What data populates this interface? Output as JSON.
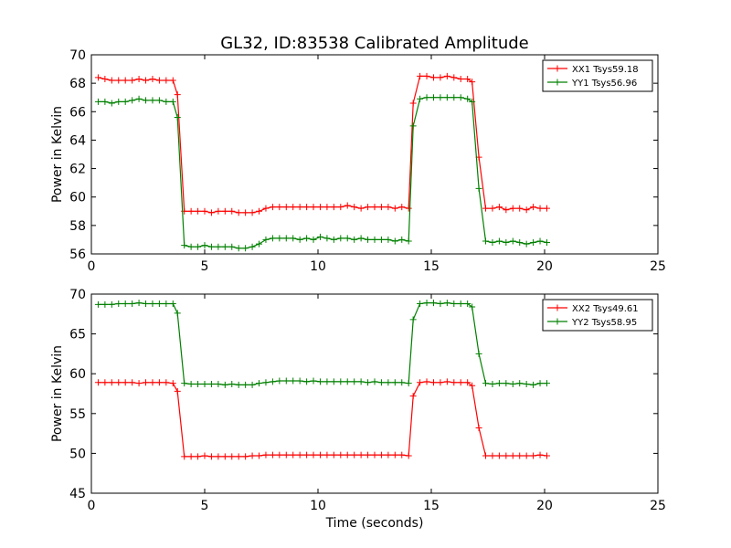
{
  "figure": {
    "title": "GL32, ID:83538 Calibrated Amplitude"
  },
  "chart_data": [
    {
      "type": "line",
      "ylabel": "Power in Kelvin",
      "xlabel": "",
      "xlim": [
        0,
        25
      ],
      "ylim": [
        56,
        70
      ],
      "xticks": [
        0,
        5,
        10,
        15,
        20,
        25
      ],
      "yticks": [
        56,
        58,
        60,
        62,
        64,
        66,
        68,
        70
      ],
      "grid": false,
      "legend_position": "top-right",
      "series": [
        {
          "name": "XX1 Tsys59.18",
          "color": "#ff0000",
          "marker": "plus",
          "x": [
            0.3,
            0.6,
            0.9,
            1.2,
            1.5,
            1.8,
            2.1,
            2.4,
            2.7,
            3.0,
            3.3,
            3.6,
            3.8,
            4.1,
            4.4,
            4.7,
            5.0,
            5.3,
            5.6,
            5.9,
            6.2,
            6.5,
            6.8,
            7.1,
            7.4,
            7.7,
            8.0,
            8.3,
            8.6,
            8.9,
            9.2,
            9.5,
            9.8,
            10.1,
            10.4,
            10.7,
            11.0,
            11.3,
            11.6,
            11.9,
            12.2,
            12.5,
            12.8,
            13.1,
            13.4,
            13.7,
            14.0,
            14.2,
            14.5,
            14.8,
            15.1,
            15.4,
            15.7,
            16.0,
            16.3,
            16.6,
            16.8,
            17.1,
            17.4,
            17.7,
            18.0,
            18.3,
            18.6,
            18.9,
            19.2,
            19.5,
            19.8,
            20.1
          ],
          "y": [
            68.4,
            68.3,
            68.2,
            68.2,
            68.2,
            68.2,
            68.3,
            68.2,
            68.3,
            68.2,
            68.2,
            68.2,
            67.2,
            59.0,
            59.0,
            59.0,
            59.0,
            58.9,
            59.0,
            59.0,
            59.0,
            58.9,
            58.9,
            58.9,
            59.0,
            59.2,
            59.3,
            59.3,
            59.3,
            59.3,
            59.3,
            59.3,
            59.3,
            59.3,
            59.3,
            59.3,
            59.3,
            59.4,
            59.3,
            59.2,
            59.3,
            59.3,
            59.3,
            59.3,
            59.2,
            59.3,
            59.2,
            66.6,
            68.5,
            68.5,
            68.4,
            68.4,
            68.5,
            68.4,
            68.3,
            68.3,
            68.1,
            62.8,
            59.2,
            59.2,
            59.3,
            59.1,
            59.2,
            59.2,
            59.1,
            59.3,
            59.2,
            59.2
          ]
        },
        {
          "name": "YY1 Tsys56.96",
          "color": "#008000",
          "marker": "plus",
          "x": [
            0.3,
            0.6,
            0.9,
            1.2,
            1.5,
            1.8,
            2.1,
            2.4,
            2.7,
            3.0,
            3.3,
            3.6,
            3.8,
            4.1,
            4.4,
            4.7,
            5.0,
            5.3,
            5.6,
            5.9,
            6.2,
            6.5,
            6.8,
            7.1,
            7.4,
            7.7,
            8.0,
            8.3,
            8.6,
            8.9,
            9.2,
            9.5,
            9.8,
            10.1,
            10.4,
            10.7,
            11.0,
            11.3,
            11.6,
            11.9,
            12.2,
            12.5,
            12.8,
            13.1,
            13.4,
            13.7,
            14.0,
            14.2,
            14.5,
            14.8,
            15.1,
            15.4,
            15.7,
            16.0,
            16.3,
            16.6,
            16.8,
            17.1,
            17.4,
            17.7,
            18.0,
            18.3,
            18.6,
            18.9,
            19.2,
            19.5,
            19.8,
            20.1
          ],
          "y": [
            66.7,
            66.7,
            66.6,
            66.7,
            66.7,
            66.8,
            66.9,
            66.8,
            66.8,
            66.8,
            66.7,
            66.7,
            65.6,
            56.6,
            56.5,
            56.5,
            56.6,
            56.5,
            56.5,
            56.5,
            56.5,
            56.4,
            56.4,
            56.5,
            56.7,
            57.0,
            57.1,
            57.1,
            57.1,
            57.1,
            57.0,
            57.1,
            57.0,
            57.2,
            57.1,
            57.0,
            57.1,
            57.1,
            57.0,
            57.1,
            57.0,
            57.0,
            57.0,
            57.0,
            56.9,
            57.0,
            56.9,
            65.0,
            66.9,
            67.0,
            67.0,
            67.0,
            67.0,
            67.0,
            67.0,
            66.9,
            66.7,
            60.6,
            56.9,
            56.8,
            56.9,
            56.8,
            56.9,
            56.8,
            56.7,
            56.8,
            56.9,
            56.8
          ]
        }
      ]
    },
    {
      "type": "line",
      "ylabel": "Power in Kelvin",
      "xlabel": "Time (seconds)",
      "xlim": [
        0,
        25
      ],
      "ylim": [
        45,
        70
      ],
      "xticks": [
        0,
        5,
        10,
        15,
        20,
        25
      ],
      "yticks": [
        45,
        50,
        55,
        60,
        65,
        70
      ],
      "grid": false,
      "legend_position": "top-right",
      "series": [
        {
          "name": "XX2 Tsys49.61",
          "color": "#ff0000",
          "marker": "plus",
          "x": [
            0.3,
            0.6,
            0.9,
            1.2,
            1.5,
            1.8,
            2.1,
            2.4,
            2.7,
            3.0,
            3.3,
            3.6,
            3.8,
            4.1,
            4.4,
            4.7,
            5.0,
            5.3,
            5.6,
            5.9,
            6.2,
            6.5,
            6.8,
            7.1,
            7.4,
            7.7,
            8.0,
            8.3,
            8.6,
            8.9,
            9.2,
            9.5,
            9.8,
            10.1,
            10.4,
            10.7,
            11.0,
            11.3,
            11.6,
            11.9,
            12.2,
            12.5,
            12.8,
            13.1,
            13.4,
            13.7,
            14.0,
            14.2,
            14.5,
            14.8,
            15.1,
            15.4,
            15.7,
            16.0,
            16.3,
            16.6,
            16.8,
            17.1,
            17.4,
            17.7,
            18.0,
            18.3,
            18.6,
            18.9,
            19.2,
            19.5,
            19.8,
            20.1
          ],
          "y": [
            58.9,
            58.9,
            58.9,
            58.9,
            58.9,
            58.9,
            58.8,
            58.9,
            58.9,
            58.9,
            58.9,
            58.8,
            57.8,
            49.6,
            49.6,
            49.6,
            49.7,
            49.6,
            49.6,
            49.6,
            49.6,
            49.6,
            49.6,
            49.7,
            49.7,
            49.8,
            49.8,
            49.8,
            49.8,
            49.8,
            49.8,
            49.8,
            49.8,
            49.8,
            49.8,
            49.8,
            49.8,
            49.8,
            49.8,
            49.8,
            49.8,
            49.8,
            49.8,
            49.8,
            49.8,
            49.8,
            49.7,
            57.2,
            58.9,
            59.0,
            58.9,
            58.9,
            59.0,
            58.9,
            58.9,
            58.9,
            58.5,
            53.2,
            49.7,
            49.7,
            49.7,
            49.7,
            49.7,
            49.7,
            49.7,
            49.7,
            49.8,
            49.7
          ]
        },
        {
          "name": "YY2 Tsys58.95",
          "color": "#008000",
          "marker": "plus",
          "x": [
            0.3,
            0.6,
            0.9,
            1.2,
            1.5,
            1.8,
            2.1,
            2.4,
            2.7,
            3.0,
            3.3,
            3.6,
            3.8,
            4.1,
            4.4,
            4.7,
            5.0,
            5.3,
            5.6,
            5.9,
            6.2,
            6.5,
            6.8,
            7.1,
            7.4,
            7.7,
            8.0,
            8.3,
            8.6,
            8.9,
            9.2,
            9.5,
            9.8,
            10.1,
            10.4,
            10.7,
            11.0,
            11.3,
            11.6,
            11.9,
            12.2,
            12.5,
            12.8,
            13.1,
            13.4,
            13.7,
            14.0,
            14.2,
            14.5,
            14.8,
            15.1,
            15.4,
            15.7,
            16.0,
            16.3,
            16.6,
            16.8,
            17.1,
            17.4,
            17.7,
            18.0,
            18.3,
            18.6,
            18.9,
            19.2,
            19.5,
            19.8,
            20.1
          ],
          "y": [
            68.7,
            68.7,
            68.7,
            68.8,
            68.8,
            68.8,
            68.9,
            68.8,
            68.8,
            68.8,
            68.8,
            68.8,
            67.6,
            58.8,
            58.7,
            58.7,
            58.7,
            58.7,
            58.7,
            58.6,
            58.7,
            58.6,
            58.6,
            58.6,
            58.8,
            58.9,
            59.0,
            59.1,
            59.1,
            59.1,
            59.1,
            59.0,
            59.1,
            59.0,
            59.0,
            59.0,
            59.0,
            59.0,
            59.0,
            59.0,
            58.9,
            59.0,
            58.9,
            58.9,
            58.9,
            58.9,
            58.8,
            66.8,
            68.8,
            68.9,
            68.9,
            68.8,
            68.9,
            68.8,
            68.8,
            68.8,
            68.4,
            62.5,
            58.8,
            58.7,
            58.8,
            58.8,
            58.7,
            58.8,
            58.7,
            58.6,
            58.8,
            58.8
          ]
        }
      ]
    }
  ]
}
